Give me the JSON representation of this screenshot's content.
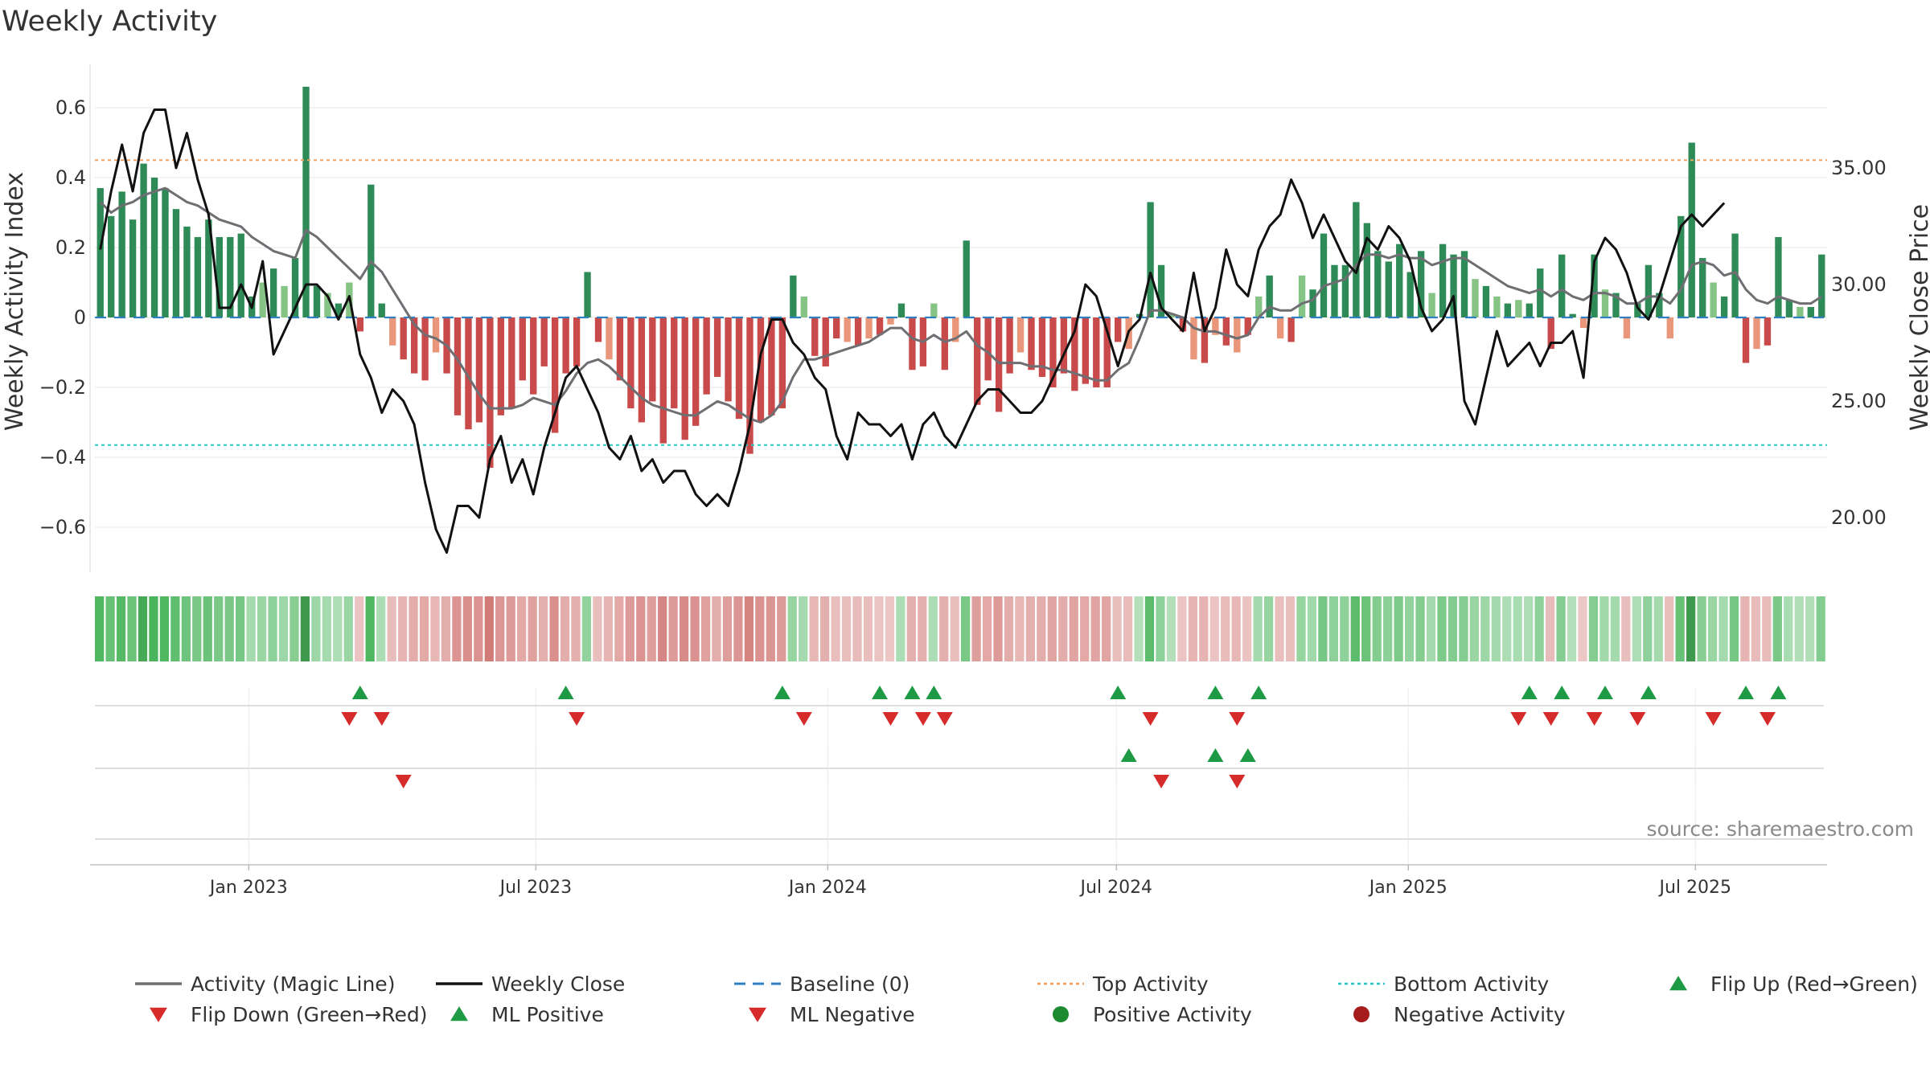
{
  "chart_data": {
    "type": "bar",
    "title": "Weekly Activity",
    "source": "source: sharemaestro.com",
    "ylabel_left": "Weekly Activity Index",
    "ylabel_right": "Weekly Close Price",
    "ylim_left": [
      -0.72,
      0.72
    ],
    "ylim_right": [
      17.8,
      39.6
    ],
    "yticks_left": [
      0.6,
      0.4,
      0.2,
      0,
      -0.2,
      -0.4,
      -0.6
    ],
    "yticks_left_labels": [
      "0.6",
      "0.4",
      "0.2",
      "0",
      "−0.2",
      "−0.4",
      "−0.6"
    ],
    "yticks_right": [
      35,
      30,
      25,
      20
    ],
    "yticks_right_labels": [
      "35.00",
      "30.00",
      "25.00",
      "20.00"
    ],
    "x_start": "2022-09-26",
    "x_end": "2025-09-22",
    "date_ticks": [
      {
        "date": "2023-01-01",
        "label": "Jan 2023"
      },
      {
        "date": "2023-07-01",
        "label": "Jul 2023"
      },
      {
        "date": "2024-01-01",
        "label": "Jan 2024"
      },
      {
        "date": "2024-07-01",
        "label": "Jul 2024"
      },
      {
        "date": "2025-01-01",
        "label": "Jan 2025"
      },
      {
        "date": "2025-07-01",
        "label": "Jul 2025"
      }
    ],
    "top_activity": 0.45,
    "bottom_activity": -0.365,
    "baseline": 0,
    "activity": [
      0.37,
      0.29,
      0.36,
      0.28,
      0.44,
      0.4,
      0.37,
      0.31,
      0.26,
      0.23,
      0.28,
      0.23,
      0.23,
      0.24,
      0.06,
      0.1,
      0.14,
      0.09,
      0.17,
      0.66,
      0.09,
      0.07,
      0.04,
      0.1,
      -0.04,
      0.38,
      0.04,
      -0.08,
      -0.12,
      -0.16,
      -0.18,
      -0.1,
      -0.16,
      -0.28,
      -0.32,
      -0.3,
      -0.43,
      -0.28,
      -0.26,
      -0.18,
      -0.22,
      -0.14,
      -0.33,
      -0.16,
      -0.14,
      0.13,
      -0.07,
      -0.12,
      -0.18,
      -0.26,
      -0.3,
      -0.24,
      -0.36,
      -0.26,
      -0.35,
      -0.31,
      -0.22,
      -0.17,
      -0.24,
      -0.29,
      -0.39,
      -0.3,
      -0.28,
      -0.26,
      0.12,
      0.06,
      -0.11,
      -0.14,
      -0.06,
      -0.07,
      -0.08,
      -0.06,
      -0.05,
      -0.02,
      0.04,
      -0.15,
      -0.14,
      0.04,
      -0.15,
      -0.07,
      0.22,
      -0.25,
      -0.18,
      -0.27,
      -0.16,
      -0.1,
      -0.15,
      -0.17,
      -0.2,
      -0.16,
      -0.21,
      -0.19,
      -0.2,
      -0.2,
      -0.07,
      -0.09,
      0.01,
      0.33,
      0.15,
      0.01,
      -0.04,
      -0.12,
      -0.13,
      -0.05,
      -0.08,
      -0.1,
      -0.05,
      0.06,
      0.12,
      -0.06,
      -0.07,
      0.12,
      0.08,
      0.24,
      0.15,
      0.15,
      0.33,
      0.27,
      0.19,
      0.16,
      0.21,
      0.13,
      0.19,
      0.07,
      0.21,
      0.18,
      0.19,
      0.11,
      0.09,
      0.06,
      0.04,
      0.05,
      0.04,
      0.14,
      -0.09,
      0.18,
      0.01,
      -0.03,
      0.18,
      0.08,
      0.07,
      -0.06,
      0.04,
      0.15,
      0.07,
      -0.06,
      0.29,
      0.5,
      0.17,
      0.1,
      0.06,
      0.24,
      -0.13,
      -0.09,
      -0.08,
      0.23,
      0.05,
      0.03,
      0.03,
      0.18
    ],
    "weekly_close": [
      31.5,
      34.0,
      36.0,
      34.0,
      36.5,
      37.5,
      37.5,
      35.0,
      36.5,
      34.5,
      33.0,
      29.0,
      29.0,
      30.0,
      29.0,
      31.0,
      27.0,
      28.0,
      29.0,
      30.0,
      30.0,
      29.5,
      28.5,
      29.5,
      27.0,
      26.0,
      24.5,
      25.5,
      25.0,
      24.0,
      21.5,
      19.5,
      18.5,
      20.5,
      20.5,
      20.0,
      22.5,
      23.5,
      21.5,
      22.5,
      21.0,
      23.0,
      24.5,
      26.0,
      26.5,
      25.5,
      24.5,
      23.0,
      22.5,
      23.5,
      22.0,
      22.5,
      21.5,
      22.0,
      22.0,
      21.0,
      20.5,
      21.0,
      20.5,
      22.0,
      24.0,
      27.0,
      28.5,
      28.5,
      27.5,
      27.0,
      26.0,
      25.5,
      23.5,
      22.5,
      24.5,
      24.0,
      24.0,
      23.5,
      24.0,
      22.5,
      24.0,
      24.5,
      23.5,
      23.0,
      24.0,
      25.0,
      25.5,
      25.5,
      25.0,
      24.5,
      24.5,
      25.0,
      26.0,
      27.0,
      28.0,
      30.0,
      29.5,
      28.0,
      26.5,
      28.0,
      28.5,
      30.5,
      29.0,
      28.5,
      28.0,
      30.5,
      28.0,
      29.0,
      31.5,
      30.0,
      29.5,
      31.5,
      32.5,
      33.0,
      34.5,
      33.5,
      32.0,
      33.0,
      32.0,
      31.0,
      30.5,
      32.0,
      31.5,
      32.5,
      32.0,
      31.0,
      29.0,
      28.0,
      28.5,
      29.5,
      25.0,
      24.0,
      26.0,
      28.0,
      26.5,
      27.0,
      27.5,
      26.5,
      27.5,
      27.5,
      28.0,
      26.0,
      31.0,
      32.0,
      31.5,
      30.5,
      29.0,
      28.5,
      29.5,
      31.0,
      32.5,
      33.0,
      32.5,
      33.0,
      33.5
    ],
    "magic_line": [
      0.33,
      0.3,
      0.32,
      0.33,
      0.35,
      0.36,
      0.37,
      0.35,
      0.33,
      0.32,
      0.3,
      0.28,
      0.27,
      0.26,
      0.23,
      0.21,
      0.19,
      0.18,
      0.17,
      0.25,
      0.23,
      0.2,
      0.17,
      0.14,
      0.11,
      0.16,
      0.13,
      0.08,
      0.03,
      -0.02,
      -0.05,
      -0.06,
      -0.08,
      -0.12,
      -0.17,
      -0.22,
      -0.26,
      -0.26,
      -0.26,
      -0.25,
      -0.23,
      -0.24,
      -0.25,
      -0.21,
      -0.16,
      -0.13,
      -0.12,
      -0.14,
      -0.17,
      -0.2,
      -0.23,
      -0.25,
      -0.26,
      -0.27,
      -0.28,
      -0.28,
      -0.26,
      -0.24,
      -0.25,
      -0.27,
      -0.29,
      -0.3,
      -0.28,
      -0.24,
      -0.17,
      -0.12,
      -0.12,
      -0.11,
      -0.1,
      -0.09,
      -0.08,
      -0.07,
      -0.05,
      -0.03,
      -0.03,
      -0.06,
      -0.07,
      -0.05,
      -0.07,
      -0.06,
      -0.04,
      -0.08,
      -0.1,
      -0.13,
      -0.13,
      -0.13,
      -0.14,
      -0.14,
      -0.15,
      -0.15,
      -0.16,
      -0.17,
      -0.18,
      -0.18,
      -0.15,
      -0.13,
      -0.06,
      0.02,
      0.02,
      0.01,
      0.0,
      -0.03,
      -0.04,
      -0.04,
      -0.05,
      -0.06,
      -0.05,
      0.0,
      0.03,
      0.02,
      0.02,
      0.04,
      0.05,
      0.09,
      0.1,
      0.11,
      0.15,
      0.18,
      0.18,
      0.17,
      0.18,
      0.17,
      0.17,
      0.15,
      0.16,
      0.17,
      0.17,
      0.15,
      0.13,
      0.11,
      0.09,
      0.08,
      0.07,
      0.08,
      0.06,
      0.08,
      0.06,
      0.05,
      0.07,
      0.07,
      0.06,
      0.04,
      0.04,
      0.06,
      0.06,
      0.04,
      0.08,
      0.15,
      0.16,
      0.15,
      0.12,
      0.13,
      0.08,
      0.05,
      0.04,
      0.06,
      0.05,
      0.04,
      0.04,
      0.06
    ],
    "flip_up_row1": [
      24,
      43,
      63,
      72,
      75,
      77,
      94,
      103,
      107,
      132,
      135,
      139,
      143,
      152,
      155
    ],
    "flip_down_row1": [
      23,
      26,
      44,
      65,
      73,
      76,
      78,
      97,
      105,
      131,
      134,
      138,
      142,
      149,
      154
    ],
    "ml_positive_row2": [
      95,
      103,
      106
    ],
    "ml_negative_row2": [
      28,
      98,
      105
    ],
    "legend": [
      {
        "label": "Activity (Magic Line)",
        "symbol": "line",
        "color": "#6e6e73"
      },
      {
        "label": "Weekly Close",
        "symbol": "line",
        "color": "#111111"
      },
      {
        "label": "Baseline (0)",
        "symbol": "dash",
        "color": "#2f7fc1"
      },
      {
        "label": "Top Activity",
        "symbol": "dot-line",
        "color": "#f0a060"
      },
      {
        "label": "Bottom Activity",
        "symbol": "dot-line",
        "color": "#2cc7c7"
      },
      {
        "label": "Flip Up (Red→Green)",
        "symbol": "tri-up",
        "color": "#1e9a45"
      },
      {
        "label": "Flip Down (Green→Red)",
        "symbol": "tri-down",
        "color": "#d62b2b"
      },
      {
        "label": "ML Positive",
        "symbol": "tri-up",
        "color": "#1e9a45"
      },
      {
        "label": "ML Negative",
        "symbol": "tri-down",
        "color": "#d62b2b"
      },
      {
        "label": "Positive Activity",
        "symbol": "circle",
        "color": "#1e8a30"
      },
      {
        "label": "Negative Activity",
        "symbol": "circle",
        "color": "#a61c1c"
      }
    ],
    "colors": {
      "pos_dark": "#2e8b57",
      "pos_light": "#86c486",
      "neg_dark": "#c94a4a",
      "neg_light": "#e9967a",
      "magic_line": "#6e6e73",
      "close_line": "#111111",
      "baseline": "#2f7fc1",
      "top_line": "#f0a060",
      "bottom_line": "#2cc7c7",
      "up_marker": "#1e9a45",
      "down_marker": "#d62b2b"
    }
  }
}
